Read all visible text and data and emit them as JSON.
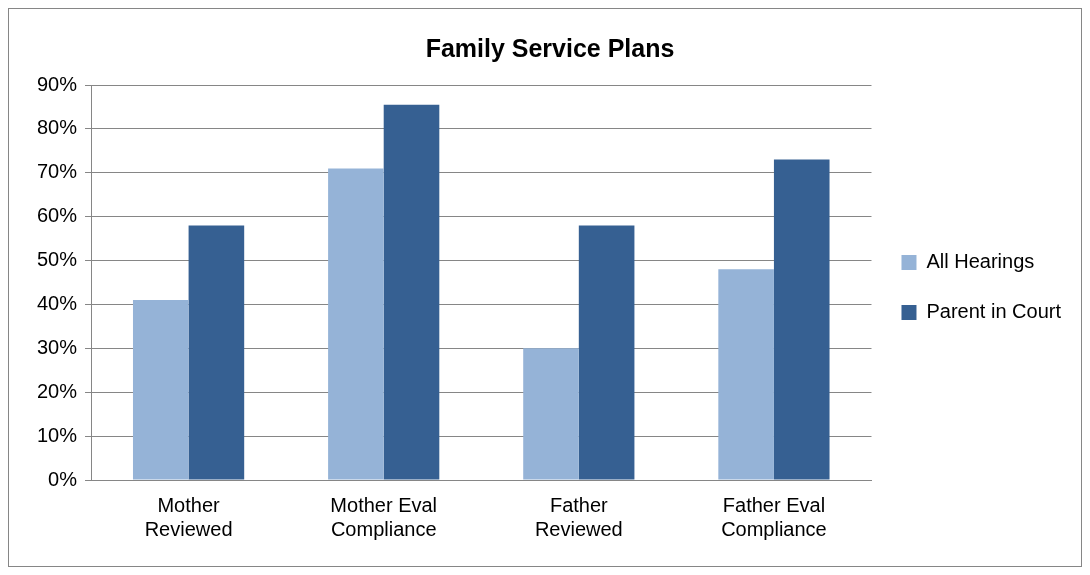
{
  "chart_data": {
    "type": "bar",
    "title": "Family Service Plans",
    "categories": [
      "Mother Reviewed",
      "Mother Eval Compliance",
      "Father Reviewed",
      "Father Eval Compliance"
    ],
    "series": [
      {
        "name": "All Hearings",
        "color": "#95b3d7",
        "values": [
          41,
          71,
          30,
          48
        ]
      },
      {
        "name": "Parent in Court",
        "color": "#366092",
        "values": [
          58,
          85.5,
          58,
          73
        ]
      }
    ],
    "ylim": [
      0,
      90
    ],
    "yticks": [
      {
        "value": 0,
        "label": "0%"
      },
      {
        "value": 10,
        "label": "10%"
      },
      {
        "value": 20,
        "label": "20%"
      },
      {
        "value": 30,
        "label": "30%"
      },
      {
        "value": 40,
        "label": "40%"
      },
      {
        "value": 50,
        "label": "50%"
      },
      {
        "value": 60,
        "label": "60%"
      },
      {
        "value": 70,
        "label": "70%"
      },
      {
        "value": 80,
        "label": "80%"
      },
      {
        "value": 90,
        "label": "90%"
      }
    ],
    "grid": "y",
    "legend": "right"
  }
}
